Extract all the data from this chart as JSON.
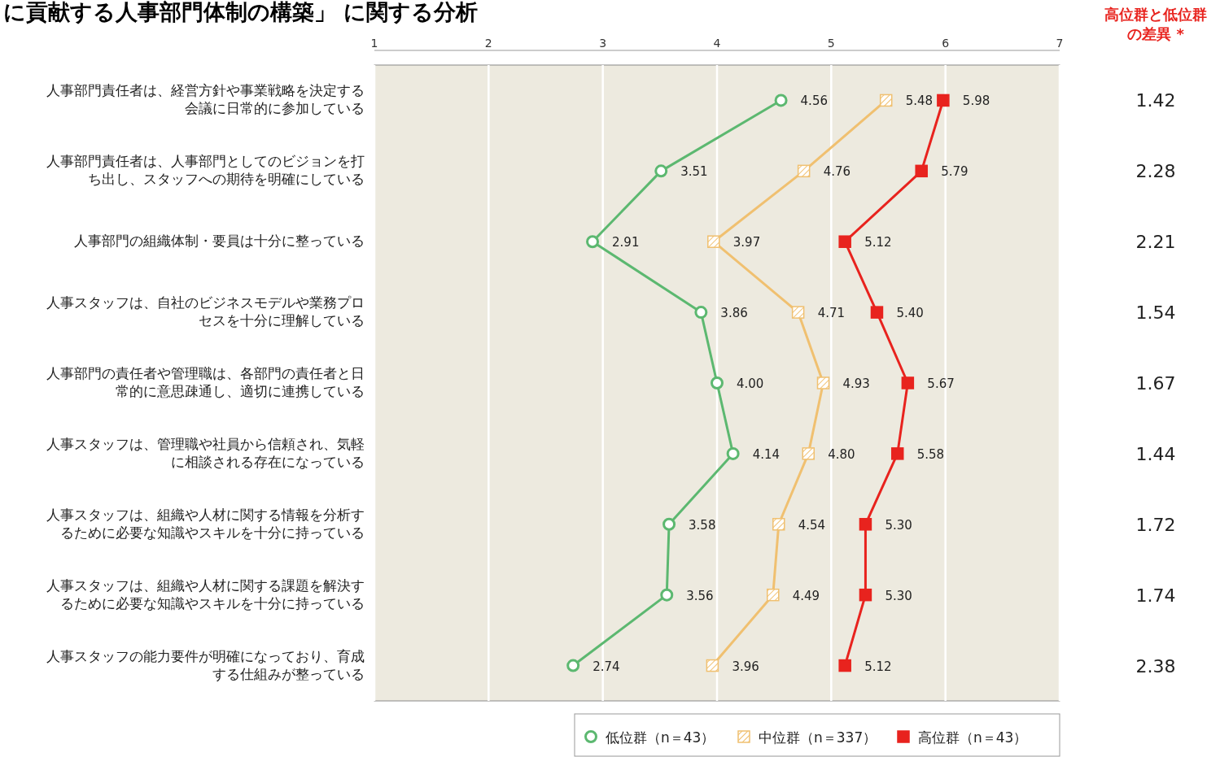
{
  "chart_data": {
    "type": "line",
    "orientation": "horizontal",
    "title": "に貢献する人事部門体制の構築」 に関する分析",
    "categories": [
      "人事部門責任者は、経営方針や事業戦略を決定する会議に日常的に参加している",
      "人事部門責任者は、人事部門としてのビジョンを打ち出し、スタッフへの期待を明確にしている",
      "人事部門の組織体制・要員は十分に整っている",
      "人事スタッフは、自社のビジネスモデルや業務プロセスを十分に理解している",
      "人事部門の責任者や管理職は、各部門の責任者と日常的に意思疎通し、適切に連携している",
      "人事スタッフは、管理職や社員から信頼され、気軽に相談される存在になっている",
      "人事スタッフは、組織や人材に関する情報を分析するために必要な知識やスキルを十分に持っている",
      "人事スタッフは、組織や人材に関する課題を解決するために必要な知識やスキルを十分に持っている",
      "人事スタッフの能力要件が明確になっており、育成する仕組みが整っている"
    ],
    "series": [
      {
        "name": "低位群（n＝43）",
        "color": "#5cb870",
        "marker": "circle",
        "values": [
          4.56,
          3.51,
          2.91,
          3.86,
          4.0,
          4.14,
          3.58,
          3.56,
          2.74
        ],
        "value_labels": [
          "4.56",
          "3.51",
          "2.91",
          "3.86",
          "4.00",
          "4.14",
          "3.58",
          "3.56",
          "2.74"
        ]
      },
      {
        "name": "中位群（n＝337）",
        "color": "#f0c070",
        "marker": "square",
        "values": [
          5.48,
          4.76,
          3.97,
          4.71,
          4.93,
          4.8,
          4.54,
          4.49,
          3.96
        ],
        "value_labels": [
          "5.48",
          "4.76",
          "3.97",
          "4.71",
          "4.93",
          "4.80",
          "4.54",
          "4.49",
          "3.96"
        ]
      },
      {
        "name": "高位群（n＝43）",
        "color": "#e8231e",
        "marker": "square",
        "values": [
          5.98,
          5.79,
          5.12,
          5.4,
          5.67,
          5.58,
          5.3,
          5.3,
          5.12
        ],
        "value_labels": [
          "5.98",
          "5.79",
          "5.12",
          "5.40",
          "5.67",
          "5.58",
          "5.30",
          "5.30",
          "5.12"
        ]
      }
    ],
    "xlim": [
      1,
      7
    ],
    "xticks": [
      1,
      2,
      3,
      4,
      5,
      6,
      7
    ],
    "grid": "x",
    "legend": "bottom",
    "annotations": [
      "高位群と低位群の差異 *",
      "1.42",
      "2.28",
      "2.21",
      "1.54",
      "1.67",
      "1.44",
      "1.72",
      "1.74",
      "2.38"
    ]
  }
}
